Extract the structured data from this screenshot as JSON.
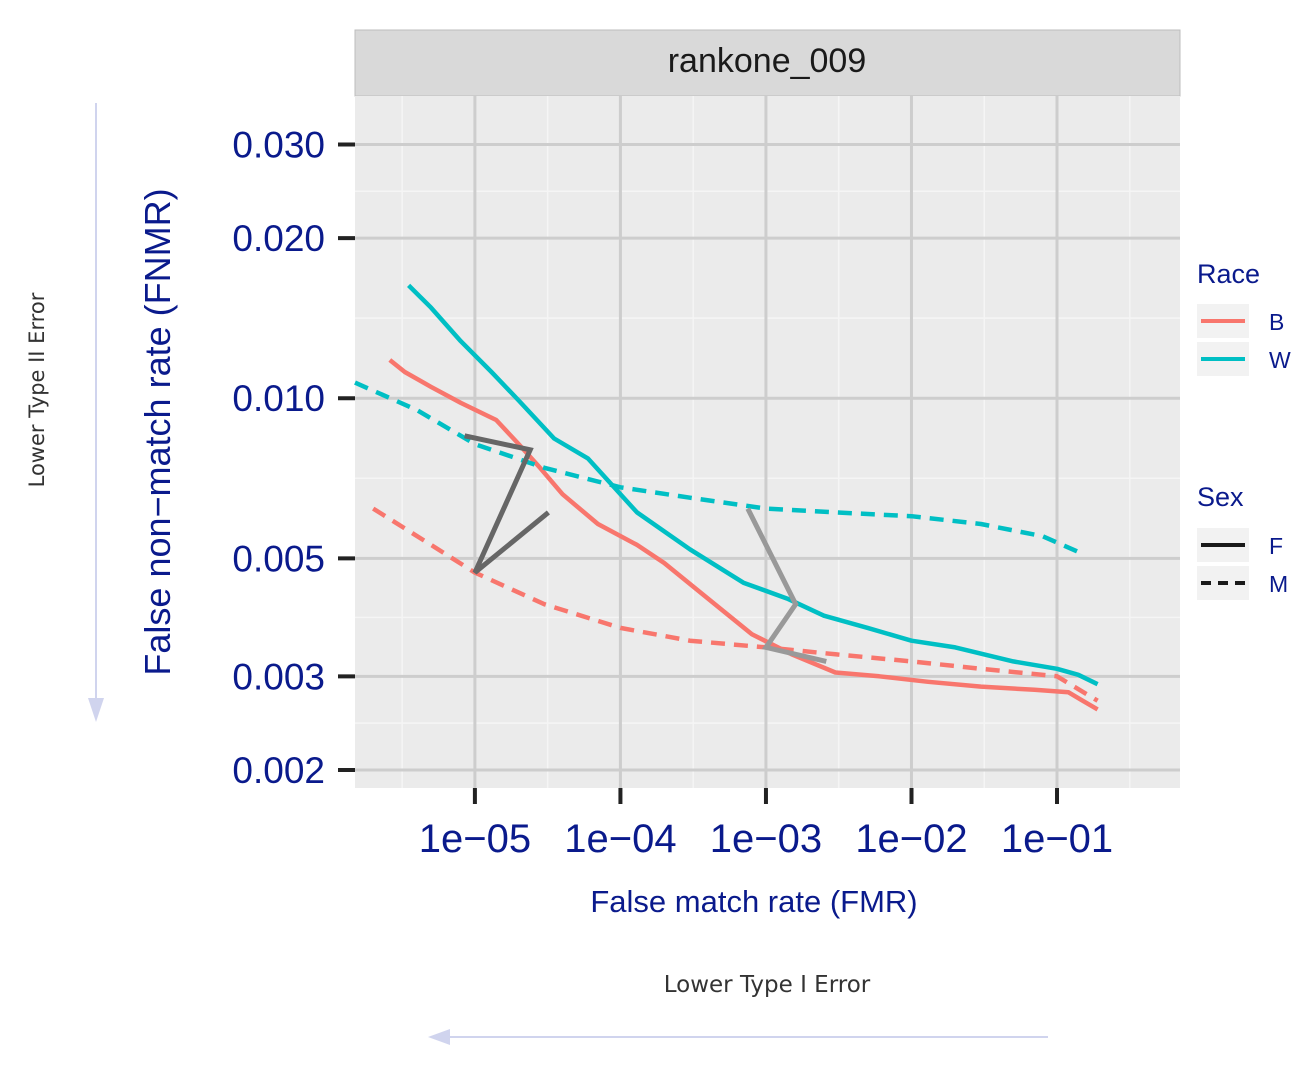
{
  "chart_data": {
    "type": "line",
    "facet_title": "rankone_009",
    "xlabel": "False match rate (FMR)",
    "ylabel": "False non−match rate (FNMR)",
    "x_scale": "log",
    "y_scale": "log",
    "x_ticks": [
      {
        "value": 1e-05,
        "label": "1e−05"
      },
      {
        "value": 0.0001,
        "label": "1e−04"
      },
      {
        "value": 0.001,
        "label": "1e−03"
      },
      {
        "value": 0.01,
        "label": "1e−02"
      },
      {
        "value": 0.1,
        "label": "1e−01"
      }
    ],
    "y_ticks": [
      {
        "value": 0.002,
        "label": "0.002"
      },
      {
        "value": 0.003,
        "label": "0.003"
      },
      {
        "value": 0.005,
        "label": "0.005"
      },
      {
        "value": 0.01,
        "label": "0.010"
      },
      {
        "value": 0.02,
        "label": "0.020"
      },
      {
        "value": 0.03,
        "label": "0.030"
      }
    ],
    "xlim": [
      1.5e-06,
      0.7
    ],
    "ylim": [
      0.00185,
      0.037
    ],
    "grid": true,
    "series": [
      {
        "name": "B",
        "race": "B",
        "sex": "F",
        "color": "#F8766D",
        "dash": "solid",
        "x": [
          2.6e-06,
          3.3e-06,
          5e-06,
          8e-06,
          1.4e-05,
          2e-05,
          2.8e-05,
          4e-05,
          7e-05,
          0.00013,
          0.0002,
          0.0004,
          0.0008,
          0.0015,
          0.003,
          0.006,
          0.013,
          0.03,
          0.07,
          0.12,
          0.15,
          0.19
        ],
        "y": [
          0.0118,
          0.0112,
          0.0105,
          0.0098,
          0.0091,
          0.0082,
          0.0074,
          0.0066,
          0.0058,
          0.0053,
          0.0049,
          0.0042,
          0.0036,
          0.0033,
          0.00305,
          0.003,
          0.00293,
          0.00287,
          0.00283,
          0.0028,
          0.0027,
          0.0026
        ]
      },
      {
        "name": "W",
        "race": "W",
        "sex": "F",
        "color": "#00BFC4",
        "dash": "solid",
        "x": [
          3.5e-06,
          5e-06,
          8e-06,
          1.3e-05,
          2e-05,
          3.5e-05,
          6e-05,
          0.00013,
          0.0003,
          0.0007,
          0.0014,
          0.0025,
          0.005,
          0.01,
          0.02,
          0.05,
          0.1,
          0.14,
          0.19
        ],
        "y": [
          0.0163,
          0.0148,
          0.0128,
          0.0112,
          0.0099,
          0.0084,
          0.0077,
          0.0061,
          0.0052,
          0.0045,
          0.0042,
          0.0039,
          0.0037,
          0.0035,
          0.0034,
          0.0032,
          0.0031,
          0.00302,
          0.0029
        ]
      },
      {
        "name": "B",
        "race": "B",
        "sex": "M",
        "color": "#F8766D",
        "dash": "dashed",
        "x": [
          2e-06,
          5e-06,
          1e-05,
          3e-05,
          0.0001,
          0.0003,
          0.001,
          0.003,
          0.01,
          0.03,
          0.1,
          0.19
        ],
        "y": [
          0.0062,
          0.0053,
          0.0047,
          0.0041,
          0.0037,
          0.0035,
          0.0034,
          0.0033,
          0.0032,
          0.0031,
          0.003,
          0.0027
        ]
      },
      {
        "name": "W",
        "race": "W",
        "sex": "M",
        "color": "#00BFC4",
        "dash": "dashed",
        "x": [
          1.5e-06,
          4e-06,
          1e-05,
          3e-05,
          0.0001,
          0.0003,
          0.001,
          0.003,
          0.01,
          0.03,
          0.08,
          0.15
        ],
        "y": [
          0.0107,
          0.0095,
          0.0082,
          0.0074,
          0.0068,
          0.0065,
          0.0062,
          0.0061,
          0.006,
          0.0058,
          0.0055,
          0.0051
        ]
      }
    ],
    "connectors": [
      {
        "color": "#666666",
        "x": [
          8.5e-06,
          2.4e-05,
          1e-05,
          3.2e-05
        ],
        "y": [
          0.0085,
          0.008,
          0.0047,
          0.0061
        ]
      },
      {
        "color": "#999999",
        "x": [
          0.00075,
          0.0016,
          0.001,
          0.0026
        ],
        "y": [
          0.0062,
          0.0041,
          0.0034,
          0.0032
        ]
      }
    ],
    "legend": {
      "placement": "right",
      "race_title": "Race",
      "race_items": [
        {
          "label": "B",
          "color": "#F8766D"
        },
        {
          "label": "W",
          "color": "#00BFC4"
        }
      ],
      "sex_title": "Sex",
      "sex_items": [
        {
          "label": "F",
          "dash": "solid"
        },
        {
          "label": "M",
          "dash": "dashed"
        }
      ]
    }
  },
  "annotations": {
    "y_arrow_label": "Lower Type II Error",
    "x_arrow_label": "Lower Type I Error"
  }
}
